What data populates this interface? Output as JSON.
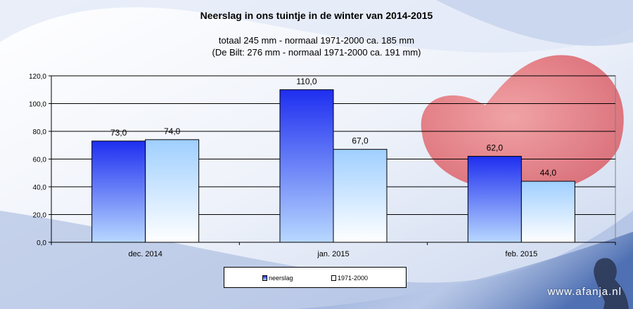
{
  "chart_data": {
    "type": "bar",
    "title": "Neerslag  in  ons  tuintje  in  de  winter  van 2014-2015",
    "subtitle_lines": [
      "totaal 245 mm  - normaal  1971-2000  ca. 185 mm",
      "(De Bilt: 276 mm  - normaal  1971-2000  ca. 191 mm)"
    ],
    "categories": [
      "dec. 2014",
      "jan. 2015",
      "feb. 2015"
    ],
    "series": [
      {
        "name": "neerslag",
        "values": [
          73.0,
          110.0,
          62.0
        ],
        "value_labels": [
          "73,0",
          "110,0",
          "62,0"
        ],
        "color_top": "#1e2ef0",
        "color_bottom": "#b8d8ff"
      },
      {
        "name": "1971-2000",
        "values": [
          74.0,
          67.0,
          44.0
        ],
        "value_labels": [
          "74,0",
          "67,0",
          "44,0"
        ],
        "color_top": "#9fcfff",
        "color_bottom": "#ffffff"
      }
    ],
    "ylim": [
      0,
      120
    ],
    "yticks": [
      0,
      20,
      40,
      60,
      80,
      100,
      120
    ],
    "ytick_labels": [
      "0,0",
      "20,0",
      "40,0",
      "60,0",
      "80,0",
      "100,0",
      "120,0"
    ],
    "xlabel": "",
    "ylabel": "",
    "grid": true,
    "legend_position": "bottom"
  },
  "watermark": "www.afanja.nl",
  "colors": {
    "heart": "#e8585a",
    "background_blue": "#3b5fa8"
  }
}
